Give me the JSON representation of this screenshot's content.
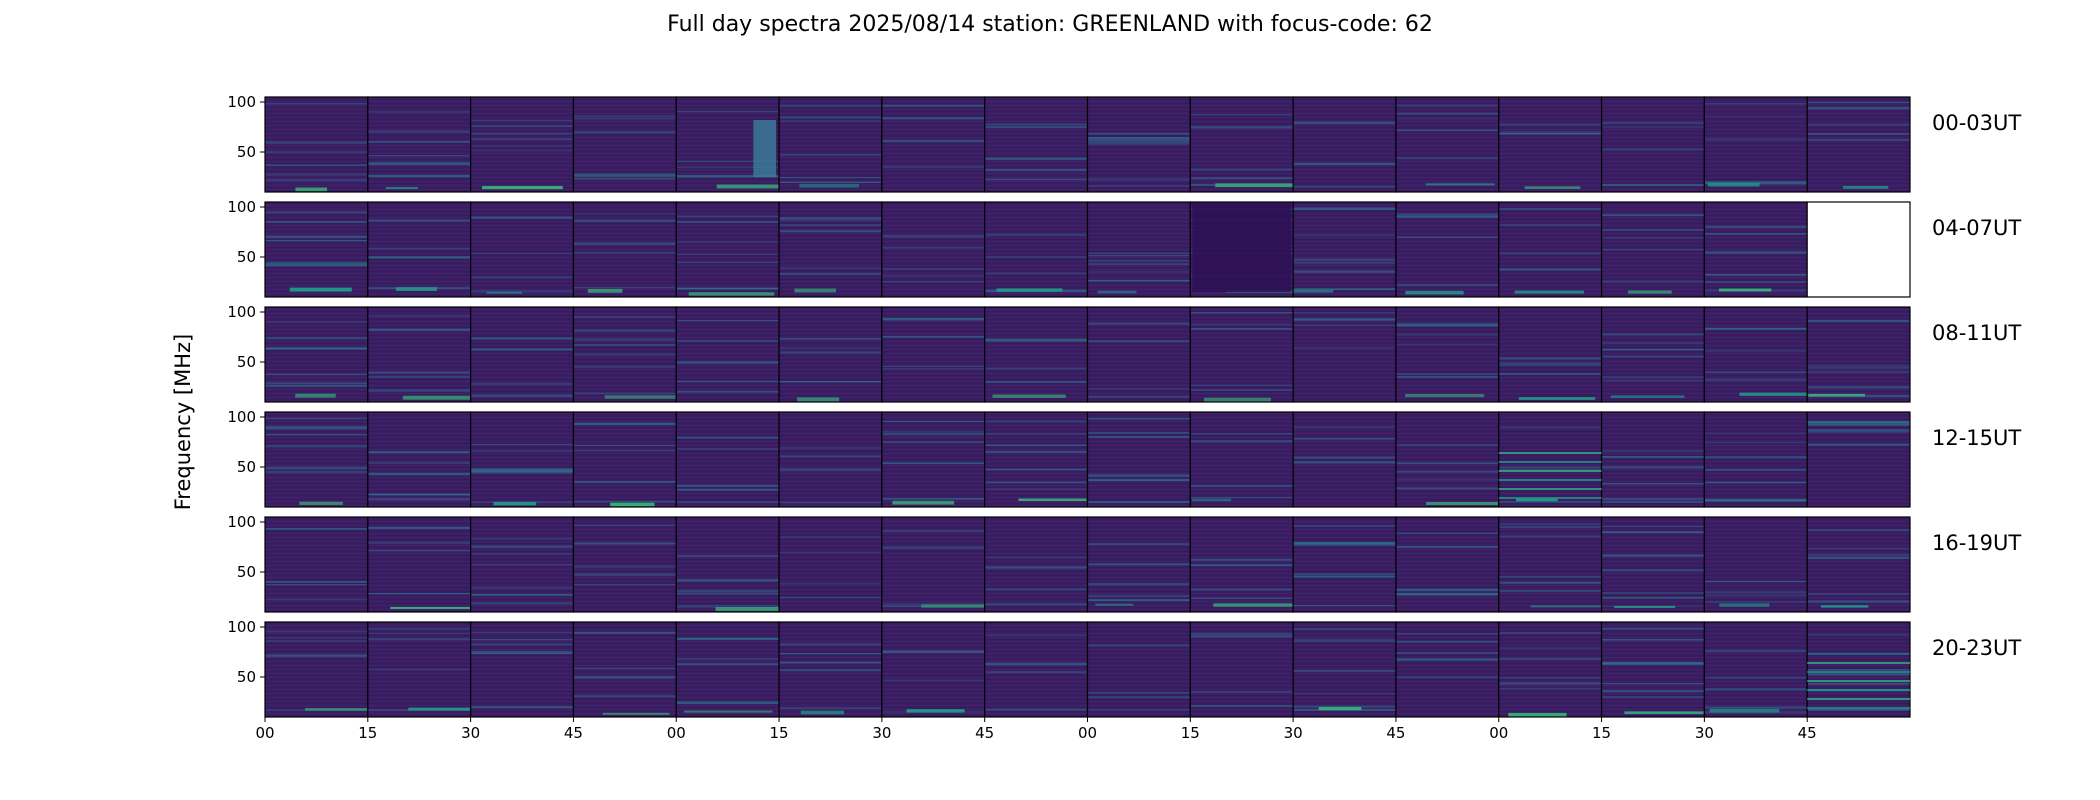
{
  "chart_data": {
    "type": "heatmap",
    "title": "Full day spectra 2025/08/14 station: GREENLAND with focus-code: 62",
    "ylabel": "Frequency [MHz]",
    "xlabel": "",
    "colormap": "viridis",
    "background_color": "#3b1d63",
    "ylim": [
      10,
      105
    ],
    "y_ticks": [
      "100",
      "50"
    ],
    "y_tick_values": [
      100,
      50
    ],
    "x_tick_labels": [
      "00",
      "15",
      "30",
      "45",
      "00",
      "15",
      "30",
      "45",
      "00",
      "15",
      "30",
      "45",
      "00",
      "15",
      "30",
      "45"
    ],
    "panels_per_row": 16,
    "minutes_per_panel": 15,
    "rows": [
      {
        "label": "00-03UT",
        "panels_with_data": 16
      },
      {
        "label": "04-07UT",
        "panels_with_data": 15
      },
      {
        "label": "08-11UT",
        "panels_with_data": 16
      },
      {
        "label": "12-15UT",
        "panels_with_data": 16
      },
      {
        "label": "16-19UT",
        "panels_with_data": 16
      },
      {
        "label": "20-23UT",
        "panels_with_data": 16
      }
    ],
    "notable_features": [
      {
        "row": 0,
        "panel": 5,
        "description": "broadband burst 25-80 MHz near end of panel"
      },
      {
        "row": 1,
        "panel": 10,
        "description": "dark low-power segment"
      },
      {
        "row": 3,
        "panel": 13,
        "description": "strong multiple horizontal bands 15-75 MHz"
      },
      {
        "row": 5,
        "panel": 16,
        "description": "bright interference bands 20-70 MHz"
      }
    ]
  }
}
